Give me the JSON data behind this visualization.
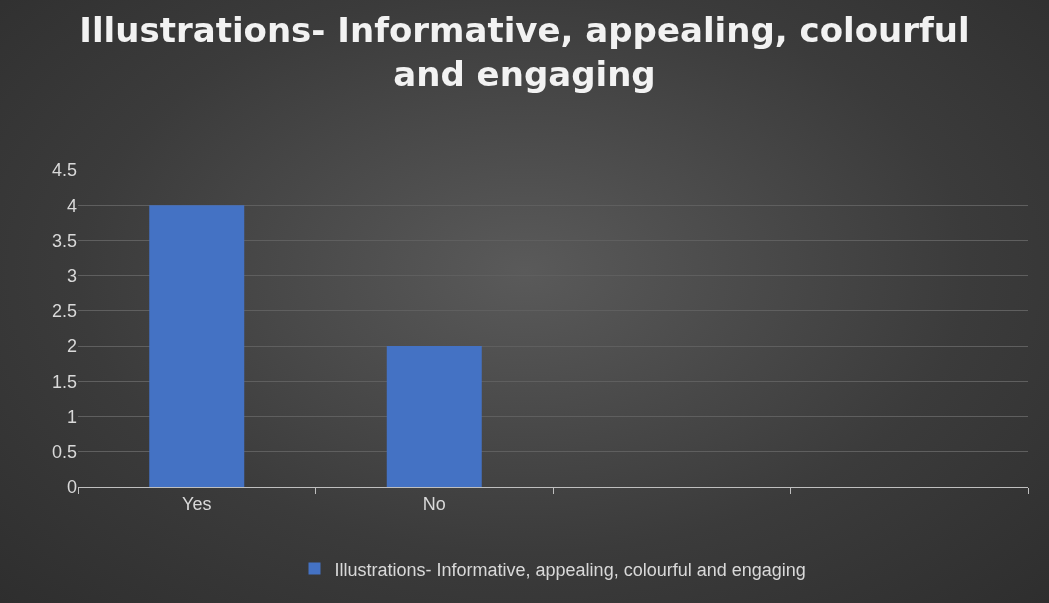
{
  "chart_data": {
    "type": "bar",
    "title": "Illustrations- Informative, appealing, colourful and engaging",
    "categories": [
      "Yes",
      "No",
      null,
      null
    ],
    "series": [
      {
        "name": "Illustrations- Informative, appealing, colourful and engaging",
        "color": "#4472c4",
        "values": [
          4,
          2,
          null,
          null
        ]
      }
    ],
    "ylim": [
      0,
      4.5
    ],
    "yticks": [
      0,
      0.5,
      1,
      1.5,
      2,
      2.5,
      3,
      3.5,
      4,
      4.5
    ],
    "grid": "y",
    "legend": "bottom"
  }
}
